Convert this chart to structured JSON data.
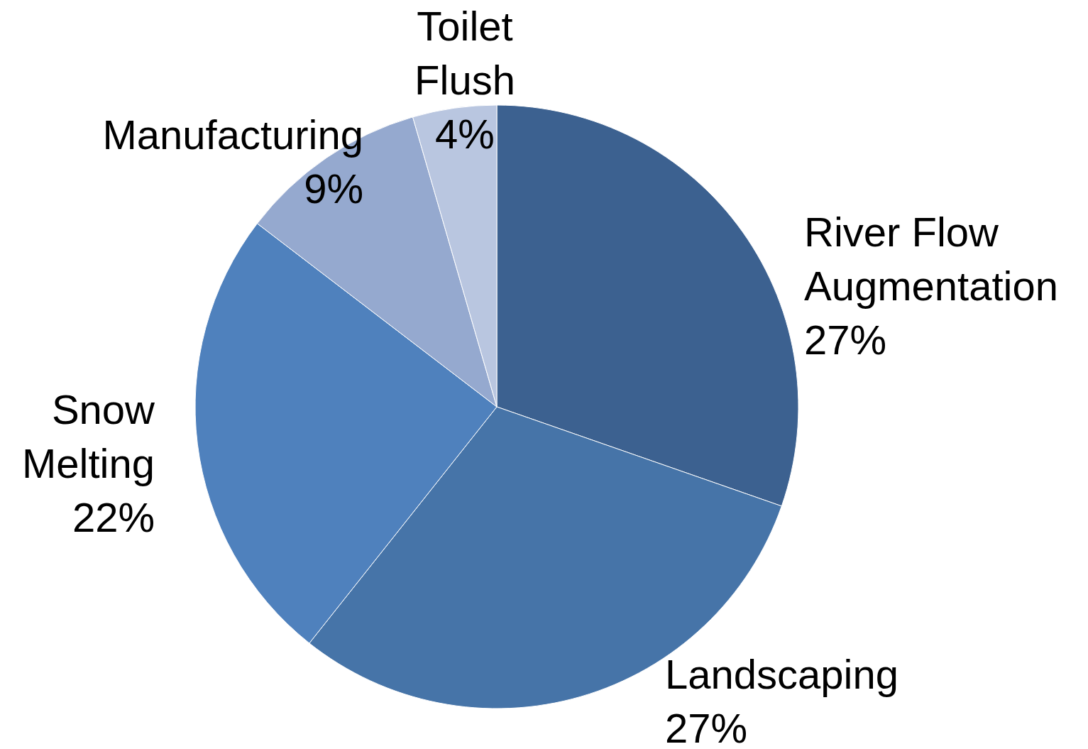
{
  "chart_data": {
    "type": "pie",
    "categories": [
      "River Flow Augmentation",
      "Landscaping",
      "Snow Melting",
      "Manufacturing",
      "Toilet Flush"
    ],
    "values": [
      27,
      27,
      22,
      9,
      4
    ],
    "value_labels": [
      "27%",
      "27%",
      "22%",
      "9%",
      "4%"
    ],
    "colors": [
      "#3c6190",
      "#4674a8",
      "#4f81bd",
      "#95a9cf",
      "#b9c6e0"
    ]
  }
}
